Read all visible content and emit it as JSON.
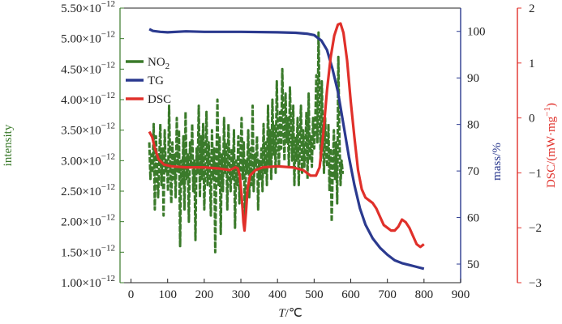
{
  "chart_data": {
    "type": "line",
    "xlabel": {
      "italic": "T",
      "rest": "/℃"
    },
    "x_ticks": [
      0,
      100,
      200,
      300,
      400,
      500,
      600,
      700,
      800,
      900
    ],
    "xlim": [
      -30,
      900
    ],
    "y_left": {
      "label": "intensity",
      "color": "#3a7a2a",
      "ylim": [
        1e-12,
        5.5e-12
      ],
      "ticks": [
        {
          "value": 1e-12,
          "mant": "1.00",
          "exp": "−12"
        },
        {
          "value": 1.5e-12,
          "mant": "1.50",
          "exp": "−12"
        },
        {
          "value": 2e-12,
          "mant": "2.00",
          "exp": "−12"
        },
        {
          "value": 2.5e-12,
          "mant": "2.50",
          "exp": "−12"
        },
        {
          "value": 3e-12,
          "mant": "3.00",
          "exp": "−12"
        },
        {
          "value": 3.5e-12,
          "mant": "3.50",
          "exp": "−12"
        },
        {
          "value": 4e-12,
          "mant": "4.00",
          "exp": "−12"
        },
        {
          "value": 4.5e-12,
          "mant": "4.50",
          "exp": "−12"
        },
        {
          "value": 5e-12,
          "mant": "5.00",
          "exp": "−12"
        },
        {
          "value": 5.5e-12,
          "mant": "5.50",
          "exp": "−12"
        }
      ]
    },
    "y_mid": {
      "label": "mass/%",
      "color": "#2b3a8f",
      "ylim": [
        46,
        105
      ],
      "ticks": [
        50,
        60,
        70,
        80,
        90,
        100
      ]
    },
    "y_right": {
      "label": "DSC/(mW·mg",
      "label_sup": "−1",
      "label_end": ")",
      "color": "#e0302a",
      "ylim": [
        -3,
        2
      ],
      "ticks": [
        {
          "value": 2,
          "text": "2"
        },
        {
          "value": 1,
          "text": "1"
        },
        {
          "value": 0,
          "text": "0"
        },
        {
          "value": -1,
          "text": "−1"
        },
        {
          "value": -2,
          "text": "−2"
        },
        {
          "value": -3,
          "text": "−3"
        }
      ]
    },
    "legend": {
      "placement": "top-left",
      "entries": [
        "NO",
        "TG",
        "DSC"
      ],
      "no2_sub": "2"
    },
    "series": [
      {
        "name": "NO2",
        "axis": "left",
        "color": "#3a7a2a",
        "x_start": 50,
        "x_step": 3,
        "values": [
          3.3e-12,
          2.7e-12,
          3.1e-12,
          2.8e-12,
          3.6e-12,
          2.2e-12,
          3.4e-12,
          2.9e-12,
          2.4e-12,
          3e-12,
          3.6e-12,
          2.6e-12,
          3.2e-12,
          2.1e-12,
          3.5e-12,
          2.8e-12,
          3e-12,
          2.5e-12,
          3.9e-12,
          2.9e-12,
          2.3e-12,
          3.3e-12,
          2.7e-12,
          3.1e-12,
          2.4e-12,
          3.7e-12,
          2.8e-12,
          3.5e-12,
          1.6e-12,
          3e-12,
          2.6e-12,
          3.4e-12,
          2.2e-12,
          3.8e-12,
          2.7e-12,
          3.1e-12,
          2e-12,
          3.3e-12,
          2.9e-12,
          3.6e-12,
          2.5e-12,
          3e-12,
          1.7e-12,
          3.2e-12,
          2.8e-12,
          3.9e-12,
          2.4e-12,
          3.4e-12,
          2.7e-12,
          3.6e-12,
          2.2e-12,
          3e-12,
          3.8e-12,
          2.6e-12,
          3.3e-12,
          2.9e-12,
          2.1e-12,
          3.5e-12,
          2.7e-12,
          3.2e-12,
          1.5e-12,
          2.9e-12,
          4e-12,
          2.6e-12,
          3.4e-12,
          1.8e-12,
          3.1e-12,
          2.5e-12,
          3.7e-12,
          2.8e-12,
          3.3e-12,
          2.2e-12,
          3.6e-12,
          2.9e-12,
          2.5e-12,
          3.2e-12,
          2.7e-12,
          3.5e-12,
          1.9e-12,
          3e-12,
          2.6e-12,
          3.4e-12,
          2.3e-12,
          3.1e-12,
          3.7e-12,
          2.7e-12,
          3.3e-12,
          2e-12,
          3e-12,
          2.8e-12,
          3.5e-12,
          2.4e-12,
          3.2e-12,
          2.6e-12,
          3.9e-12,
          2.5e-12,
          3.1e-12,
          2.9e-12,
          3.4e-12,
          2.2e-12,
          3e-12,
          2.7e-12,
          3.2e-12,
          2.5e-12,
          3.6e-12,
          2.8e-12,
          3.3e-12,
          2.6e-12,
          3.9e-12,
          2.9e-12,
          3.5e-12,
          2.7e-12,
          4e-12,
          3.1e-12,
          3.6e-12,
          2.8e-12,
          4.3e-12,
          3.4e-12,
          2.9e-12,
          3.8e-12,
          3.2e-12,
          4.5e-12,
          3.6e-12,
          3e-12,
          4.1e-12,
          3.3e-12,
          3.7e-12,
          2.9e-12,
          4.2e-12,
          3.5e-12,
          3e-12,
          3.9e-12,
          2.6e-12,
          3.4e-12,
          3e-12,
          3.7e-12,
          2.6e-12,
          3.3e-12,
          3.9e-12,
          2.8e-12,
          3.5e-12,
          2.9e-12,
          3.2e-12,
          3.8e-12,
          2.7e-12,
          4.1e-12,
          3e-12,
          3.4e-12,
          2.9e-12,
          3.7e-12,
          3.2e-12,
          3.6e-12,
          4.4e-12,
          3.3e-12,
          5.1e-12,
          3.8e-12,
          3e-12,
          4.3e-12,
          3.4e-12,
          2.8e-12,
          3.7e-12,
          3.1e-12,
          2.9e-12,
          3.6e-12,
          2.5e-12,
          3.2e-12,
          2e-12,
          2.9e-12,
          3.5e-12,
          2.7e-12,
          3.3e-12,
          2.3e-12,
          4.7e-12,
          3.4e-12,
          2.6e-12,
          3e-12,
          2.8e-12,
          2.8e-12
        ]
      },
      {
        "name": "TG",
        "axis": "mid",
        "color": "#2b3a8f",
        "points": [
          [
            50,
            100.5
          ],
          [
            60,
            100.1
          ],
          [
            80,
            99.9
          ],
          [
            100,
            99.8
          ],
          [
            150,
            100.0
          ],
          [
            200,
            99.9
          ],
          [
            300,
            99.9
          ],
          [
            400,
            99.8
          ],
          [
            450,
            99.7
          ],
          [
            480,
            99.5
          ],
          [
            500,
            99.2
          ],
          [
            520,
            98.0
          ],
          [
            535,
            96.0
          ],
          [
            550,
            92.0
          ],
          [
            565,
            87.0
          ],
          [
            580,
            80.0
          ],
          [
            595,
            73.0
          ],
          [
            610,
            67.0
          ],
          [
            625,
            62.0
          ],
          [
            640,
            58.5
          ],
          [
            660,
            55.5
          ],
          [
            680,
            53.5
          ],
          [
            700,
            52.0
          ],
          [
            720,
            50.8
          ],
          [
            740,
            50.2
          ],
          [
            760,
            49.8
          ],
          [
            780,
            49.4
          ],
          [
            800,
            49.0
          ]
        ]
      },
      {
        "name": "DSC",
        "axis": "right",
        "color": "#e0302a",
        "points": [
          [
            50,
            -0.25
          ],
          [
            58,
            -0.35
          ],
          [
            65,
            -0.55
          ],
          [
            75,
            -0.75
          ],
          [
            90,
            -0.85
          ],
          [
            110,
            -0.88
          ],
          [
            150,
            -0.9
          ],
          [
            200,
            -0.9
          ],
          [
            240,
            -0.92
          ],
          [
            270,
            -0.95
          ],
          [
            285,
            -0.9
          ],
          [
            292,
            -0.92
          ],
          [
            297,
            -1.05
          ],
          [
            302,
            -1.4
          ],
          [
            307,
            -1.9
          ],
          [
            310,
            -2.05
          ],
          [
            314,
            -1.7
          ],
          [
            318,
            -1.3
          ],
          [
            325,
            -1.05
          ],
          [
            340,
            -0.95
          ],
          [
            360,
            -0.9
          ],
          [
            400,
            -0.88
          ],
          [
            440,
            -0.9
          ],
          [
            470,
            -0.95
          ],
          [
            490,
            -1.05
          ],
          [
            505,
            -1.05
          ],
          [
            515,
            -0.9
          ],
          [
            525,
            -0.3
          ],
          [
            535,
            0.5
          ],
          [
            545,
            1.1
          ],
          [
            555,
            1.5
          ],
          [
            565,
            1.7
          ],
          [
            572,
            1.72
          ],
          [
            580,
            1.55
          ],
          [
            590,
            1.05
          ],
          [
            600,
            0.3
          ],
          [
            610,
            -0.35
          ],
          [
            620,
            -0.95
          ],
          [
            630,
            -1.3
          ],
          [
            640,
            -1.45
          ],
          [
            650,
            -1.5
          ],
          [
            660,
            -1.55
          ],
          [
            670,
            -1.65
          ],
          [
            680,
            -1.8
          ],
          [
            690,
            -1.95
          ],
          [
            700,
            -2.0
          ],
          [
            710,
            -2.05
          ],
          [
            720,
            -2.05
          ],
          [
            730,
            -1.98
          ],
          [
            740,
            -1.85
          ],
          [
            750,
            -1.9
          ],
          [
            760,
            -2.0
          ],
          [
            770,
            -2.15
          ],
          [
            780,
            -2.3
          ],
          [
            790,
            -2.35
          ],
          [
            800,
            -2.3
          ]
        ]
      }
    ]
  }
}
